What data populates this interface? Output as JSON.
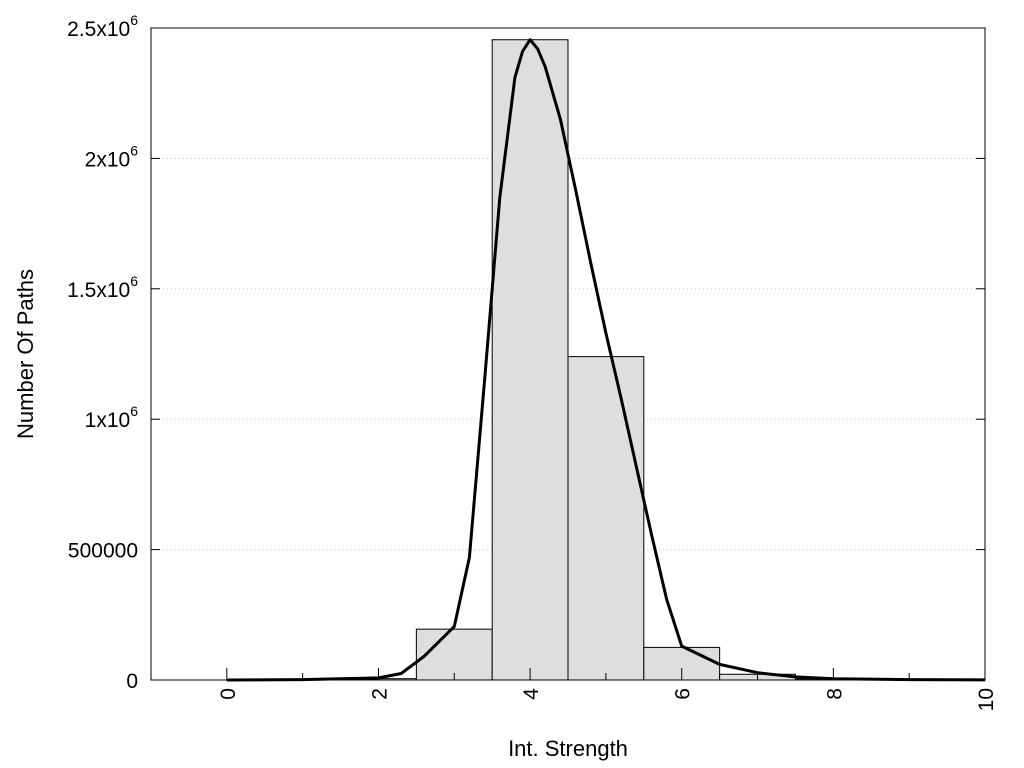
{
  "chart_data": {
    "type": "bar",
    "title": "",
    "xlabel": "Int. Strength",
    "ylabel": "Number Of Paths",
    "xlim": [
      -1,
      10
    ],
    "ylim": [
      0,
      2500000
    ],
    "grid": true,
    "x_ticks": [
      {
        "value": 0,
        "label": "0"
      },
      {
        "value": 2,
        "label": "2"
      },
      {
        "value": 4,
        "label": "4"
      },
      {
        "value": 6,
        "label": "6"
      },
      {
        "value": 8,
        "label": "8"
      },
      {
        "value": 10,
        "label": "10"
      }
    ],
    "y_ticks": [
      {
        "value": 0,
        "label": "0"
      },
      {
        "value": 500000,
        "label": "500000"
      },
      {
        "value": 1000000,
        "label": "1x10",
        "exponent": "6"
      },
      {
        "value": 1500000,
        "label": "1.5x10",
        "exponent": "6"
      },
      {
        "value": 2000000,
        "label": "2x10",
        "exponent": "6"
      },
      {
        "value": 2500000,
        "label": "2.5x10",
        "exponent": "6"
      }
    ],
    "bin_width": 1,
    "categories": [
      0,
      1,
      2,
      3,
      4,
      5,
      6,
      7,
      8,
      9
    ],
    "values": [
      0,
      0,
      5000,
      195000,
      2455000,
      1240000,
      125000,
      22000,
      4000,
      1000
    ],
    "series": [
      {
        "type": "line",
        "x": [
          0,
          1,
          2,
          2.3,
          2.6,
          3,
          3.2,
          3.4,
          3.6,
          3.8,
          3.9,
          4,
          4.1,
          4.2,
          4.4,
          4.6,
          4.8,
          5,
          5.2,
          5.4,
          5.6,
          5.8,
          6,
          6.5,
          7,
          7.5,
          8,
          9,
          10
        ],
        "values": [
          0,
          1500,
          8000,
          25000,
          90000,
          205000,
          470000,
          1150000,
          1850000,
          2310000,
          2410000,
          2455000,
          2420000,
          2350000,
          2150000,
          1880000,
          1600000,
          1330000,
          1080000,
          820000,
          560000,
          310000,
          130000,
          60000,
          28000,
          12000,
          5000,
          1500,
          500
        ]
      }
    ],
    "colors": {
      "bar_fill": "#dedede",
      "bar_stroke": "#000000",
      "line": "#000000",
      "grid": "#c8c8c8"
    }
  }
}
